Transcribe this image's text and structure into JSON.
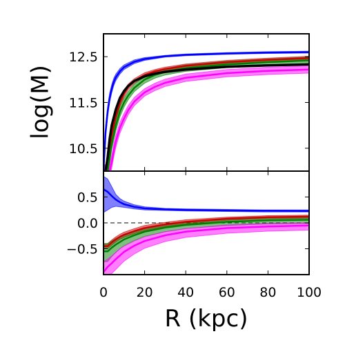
{
  "chart_data": [
    {
      "type": "line",
      "panel": "top",
      "title": "",
      "xlabel": "",
      "ylabel": "log(M)",
      "xlim": [
        0,
        100
      ],
      "ylim": [
        10.0,
        13.0
      ],
      "xticks": [
        0,
        20,
        40,
        60,
        80,
        100
      ],
      "yticks": [
        10.5,
        11.5,
        12.5
      ],
      "ytick_labels": [
        "10.5",
        "11.5",
        "12.5"
      ],
      "grid": false,
      "series": [
        {
          "color": "#0000ff",
          "band": true,
          "x": [
            0,
            1,
            2,
            3,
            4,
            5,
            6,
            8,
            10,
            15,
            20,
            30,
            40,
            60,
            80,
            100
          ],
          "y": [
            10.0,
            10.85,
            11.3,
            11.6,
            11.8,
            11.95,
            12.05,
            12.18,
            12.27,
            12.39,
            12.45,
            12.51,
            12.54,
            12.57,
            12.59,
            12.6
          ],
          "band_half_width": [
            0.12,
            0.12,
            0.11,
            0.1,
            0.09,
            0.08,
            0.07,
            0.06,
            0.05,
            0.04,
            0.03,
            0.02,
            0.02,
            0.02,
            0.02,
            0.02
          ]
        },
        {
          "color": "#cc0000",
          "band": true,
          "x": [
            0,
            2,
            3,
            4,
            6,
            8,
            10,
            12,
            15,
            20,
            25,
            30,
            40,
            60,
            80,
            100
          ],
          "y": [
            10.0,
            10.0,
            10.45,
            10.8,
            11.2,
            11.5,
            11.7,
            11.84,
            11.97,
            12.1,
            12.18,
            12.23,
            12.3,
            12.38,
            12.43,
            12.47
          ],
          "band_half_width": [
            0.1,
            0.1,
            0.1,
            0.1,
            0.09,
            0.08,
            0.07,
            0.06,
            0.05,
            0.05,
            0.04,
            0.04,
            0.04,
            0.04,
            0.04,
            0.04
          ]
        },
        {
          "color": "#008000",
          "band": true,
          "x": [
            0,
            2,
            3,
            4,
            6,
            8,
            10,
            12,
            15,
            20,
            25,
            30,
            40,
            60,
            80,
            100
          ],
          "y": [
            10.0,
            10.0,
            10.3,
            10.6,
            11.0,
            11.3,
            11.5,
            11.65,
            11.82,
            12.0,
            12.1,
            12.17,
            12.25,
            12.33,
            12.38,
            12.42
          ],
          "band_half_width": [
            0.14,
            0.14,
            0.14,
            0.13,
            0.12,
            0.11,
            0.1,
            0.09,
            0.08,
            0.08,
            0.07,
            0.07,
            0.07,
            0.07,
            0.07,
            0.07
          ]
        },
        {
          "color": "#000000",
          "band": false,
          "x": [
            0,
            1,
            2,
            3,
            4,
            6,
            8,
            10,
            12,
            15,
            20,
            25,
            30,
            40,
            60,
            80,
            100
          ],
          "y": [
            10.0,
            10.0,
            10.3,
            10.7,
            11.0,
            11.35,
            11.6,
            11.75,
            11.86,
            11.97,
            12.07,
            12.13,
            12.17,
            12.22,
            12.28,
            12.31,
            12.33
          ]
        },
        {
          "color": "#ff00ff",
          "band": true,
          "x": [
            0,
            3,
            4,
            5,
            6,
            8,
            10,
            12,
            15,
            20,
            25,
            30,
            40,
            60,
            80,
            100
          ],
          "y": [
            10.0,
            10.0,
            10.2,
            10.45,
            10.65,
            10.95,
            11.15,
            11.33,
            11.52,
            11.72,
            11.84,
            11.93,
            12.04,
            12.14,
            12.19,
            12.22
          ],
          "band_half_width": [
            0.14,
            0.14,
            0.14,
            0.14,
            0.13,
            0.12,
            0.11,
            0.1,
            0.09,
            0.08,
            0.08,
            0.08,
            0.08,
            0.08,
            0.08,
            0.08
          ]
        }
      ]
    },
    {
      "type": "line",
      "panel": "bottom",
      "title": "",
      "xlabel": "R (kpc)",
      "ylabel": "",
      "xlim": [
        0,
        100
      ],
      "ylim": [
        -1.0,
        1.0
      ],
      "xticks": [
        0,
        20,
        40,
        60,
        80,
        100
      ],
      "xtick_labels": [
        "0",
        "20",
        "40",
        "60",
        "80",
        "100"
      ],
      "yticks": [
        -0.5,
        0.0,
        0.5
      ],
      "ytick_labels": [
        "−0.5",
        "0.0",
        "0.5"
      ],
      "reference_line": 0.0,
      "grid": false,
      "series": [
        {
          "color": "#0000ff",
          "x": [
            0,
            2,
            4,
            6,
            8,
            10,
            15,
            20,
            30,
            40,
            60,
            80,
            100
          ],
          "y": [
            0.65,
            0.6,
            0.52,
            0.45,
            0.4,
            0.36,
            0.31,
            0.28,
            0.26,
            0.25,
            0.24,
            0.235,
            0.23
          ],
          "band_upper": [
            0.9,
            0.85,
            0.7,
            0.55,
            0.47,
            0.42,
            0.35,
            0.31,
            0.28,
            0.27,
            0.26,
            0.25,
            0.25
          ],
          "band_lower": [
            0.2,
            0.25,
            0.3,
            0.32,
            0.31,
            0.3,
            0.27,
            0.25,
            0.24,
            0.23,
            0.22,
            0.21,
            0.21
          ]
        },
        {
          "color": "#cc0000",
          "x": [
            0,
            2,
            4,
            6,
            8,
            10,
            15,
            20,
            30,
            40,
            60,
            80,
            100
          ],
          "y": [
            -0.45,
            -0.45,
            -0.38,
            -0.32,
            -0.27,
            -0.23,
            -0.16,
            -0.1,
            -0.03,
            0.02,
            0.08,
            0.11,
            0.12
          ],
          "band_upper": [
            -0.4,
            -0.4,
            -0.33,
            -0.27,
            -0.22,
            -0.18,
            -0.11,
            -0.05,
            0.01,
            0.06,
            0.11,
            0.14,
            0.15
          ],
          "band_lower": [
            -0.5,
            -0.5,
            -0.43,
            -0.37,
            -0.32,
            -0.28,
            -0.21,
            -0.15,
            -0.07,
            -0.02,
            0.05,
            0.08,
            0.09
          ]
        },
        {
          "color": "#008000",
          "x": [
            0,
            2,
            4,
            6,
            8,
            10,
            15,
            20,
            30,
            40,
            60,
            80,
            100
          ],
          "y": [
            -0.55,
            -0.55,
            -0.48,
            -0.42,
            -0.37,
            -0.32,
            -0.24,
            -0.17,
            -0.09,
            -0.04,
            0.02,
            0.05,
            0.06
          ],
          "band_upper": [
            -0.4,
            -0.4,
            -0.35,
            -0.3,
            -0.26,
            -0.22,
            -0.15,
            -0.09,
            -0.02,
            0.02,
            0.08,
            0.11,
            0.12
          ],
          "band_lower": [
            -0.75,
            -0.75,
            -0.65,
            -0.57,
            -0.5,
            -0.44,
            -0.34,
            -0.26,
            -0.17,
            -0.11,
            -0.05,
            -0.02,
            -0.01
          ]
        },
        {
          "color": "#ff00ff",
          "x": [
            0,
            2,
            4,
            6,
            8,
            10,
            15,
            20,
            30,
            40,
            60,
            80,
            100
          ],
          "y": [
            -0.95,
            -0.85,
            -0.78,
            -0.7,
            -0.63,
            -0.56,
            -0.44,
            -0.35,
            -0.24,
            -0.17,
            -0.1,
            -0.07,
            -0.05
          ],
          "band_upper": [
            -0.75,
            -0.7,
            -0.64,
            -0.57,
            -0.5,
            -0.45,
            -0.35,
            -0.27,
            -0.17,
            -0.11,
            -0.04,
            -0.01,
            0.0
          ],
          "band_lower": [
            -1.0,
            -1.0,
            -0.98,
            -0.9,
            -0.82,
            -0.74,
            -0.6,
            -0.49,
            -0.36,
            -0.28,
            -0.2,
            -0.16,
            -0.14
          ]
        }
      ]
    }
  ]
}
